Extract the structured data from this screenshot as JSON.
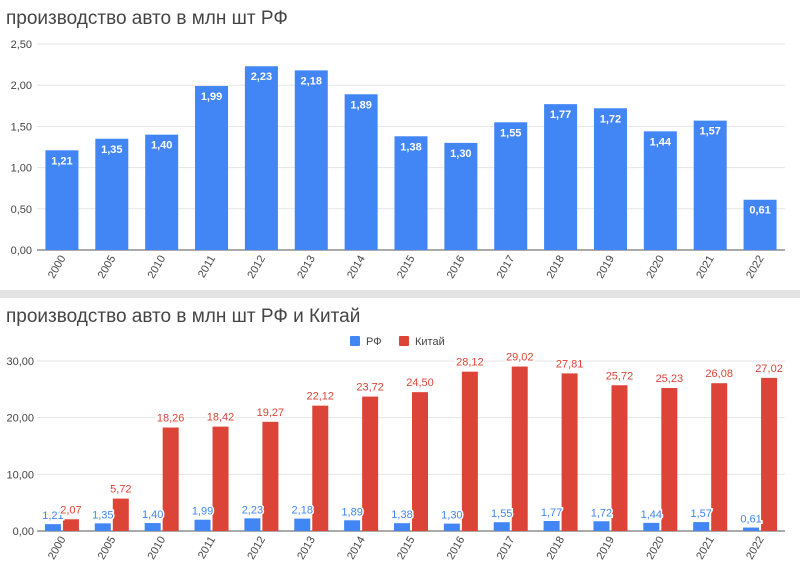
{
  "colors": {
    "rf": "#4285f4",
    "china": "#db4437",
    "grid": "#e5e5e5",
    "axis": "#555555",
    "text": "#444444"
  },
  "chart_data": [
    {
      "type": "bar",
      "title": "производство авто в млн шт РФ",
      "categories": [
        "2000",
        "2005",
        "2010",
        "2011",
        "2012",
        "2013",
        "2014",
        "2015",
        "2016",
        "2017",
        "2018",
        "2019",
        "2020",
        "2021",
        "2022"
      ],
      "series": [
        {
          "values": [
            1.21,
            1.35,
            1.4,
            1.99,
            2.23,
            2.18,
            1.89,
            1.38,
            1.3,
            1.55,
            1.77,
            1.72,
            1.44,
            1.57,
            0.61
          ],
          "labels": [
            "1,21",
            "1,35",
            "1,40",
            "1,99",
            "2,23",
            "2,18",
            "1,89",
            "1,38",
            "1,30",
            "1,55",
            "1,77",
            "1,72",
            "1,44",
            "1,57",
            "0,61"
          ]
        }
      ],
      "ylim": [
        0,
        2.5
      ],
      "yticks": [
        "0,00",
        "0,50",
        "1,00",
        "1,50",
        "2,00",
        "2,50"
      ],
      "grid": true
    },
    {
      "type": "bar",
      "title": "производство авто в млн шт РФ и Китай",
      "categories": [
        "2000",
        "2005",
        "2010",
        "2011",
        "2012",
        "2013",
        "2014",
        "2015",
        "2016",
        "2017",
        "2018",
        "2019",
        "2020",
        "2021",
        "2022"
      ],
      "series": [
        {
          "name": "РФ",
          "values": [
            1.21,
            1.35,
            1.4,
            1.99,
            2.23,
            2.18,
            1.89,
            1.38,
            1.3,
            1.55,
            1.77,
            1.72,
            1.44,
            1.57,
            0.61
          ],
          "labels": [
            "1,21",
            "1,35",
            "1,40",
            "1,99",
            "2,23",
            "2,18",
            "1,89",
            "1,38",
            "1,30",
            "1,55",
            "1,77",
            "1,72",
            "1,44",
            "1,57",
            "0,61"
          ]
        },
        {
          "name": "Китай",
          "values": [
            2.07,
            5.72,
            18.26,
            18.42,
            19.27,
            22.12,
            23.72,
            24.5,
            28.12,
            29.02,
            27.81,
            25.72,
            25.23,
            26.08,
            27.02
          ],
          "labels": [
            "2,07",
            "5,72",
            "18,26",
            "18,42",
            "19,27",
            "22,12",
            "23,72",
            "24,50",
            "28,12",
            "29,02",
            "27,81",
            "25,72",
            "25,23",
            "26,08",
            "27,02"
          ]
        }
      ],
      "ylim": [
        0,
        30
      ],
      "yticks": [
        "0,00",
        "10,00",
        "20,00",
        "30,00"
      ],
      "legend": "top-center",
      "grid": true
    }
  ]
}
